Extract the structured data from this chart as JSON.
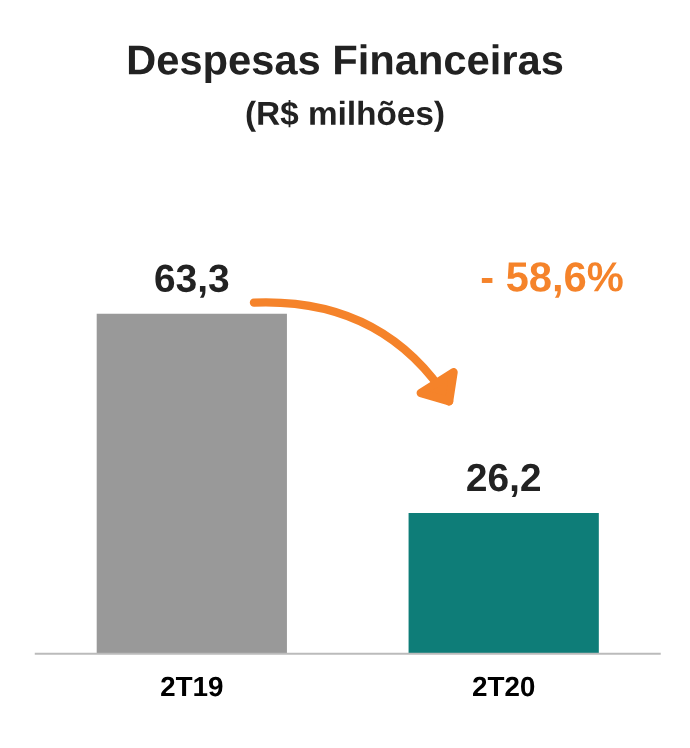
{
  "chart_data": {
    "type": "bar",
    "title": "Despesas Financeiras",
    "subtitle": "(R$ milhões)",
    "categories": [
      "2T19",
      "2T20"
    ],
    "values": [
      63.3,
      26.2
    ],
    "colors": [
      "#999999",
      "#0e7d78"
    ],
    "value_labels": [
      "63,3",
      "26,2"
    ],
    "annotations": [
      "- 58,6%"
    ],
    "grid": false,
    "legend": false
  }
}
